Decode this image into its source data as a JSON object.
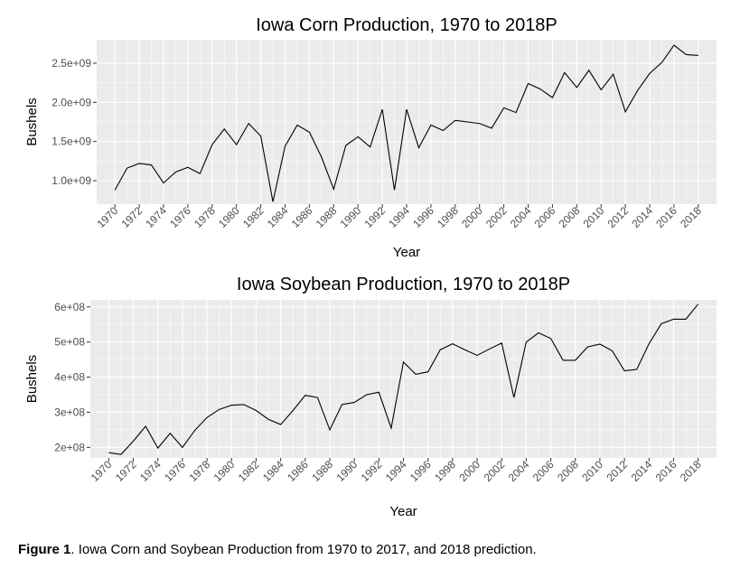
{
  "chart_data": [
    {
      "type": "line",
      "title": "Iowa Corn Production, 1970 to 2018P",
      "xlabel": "Year",
      "ylabel": "Bushels",
      "xlim": [
        1970,
        2018
      ],
      "ylim": [
        700000000,
        2800000000
      ],
      "x_ticks": [
        "1970",
        "1972",
        "1974",
        "1976",
        "1978",
        "1980",
        "1982",
        "1984",
        "1986",
        "1988",
        "1990",
        "1992",
        "1994",
        "1996",
        "1998",
        "2000",
        "2002",
        "2004",
        "2006",
        "2008",
        "2010",
        "2012",
        "2014",
        "2016",
        "2018"
      ],
      "y_ticks": [
        "1.0e+09",
        "1.5e+09",
        "2.0e+09",
        "2.5e+09"
      ],
      "y_tick_values": [
        1000000000,
        1500000000,
        2000000000,
        2500000000
      ],
      "grid": true,
      "x": [
        1970,
        1971,
        1972,
        1973,
        1974,
        1975,
        1976,
        1977,
        1978,
        1979,
        1980,
        1981,
        1982,
        1983,
        1984,
        1985,
        1986,
        1987,
        1988,
        1989,
        1990,
        1991,
        1992,
        1993,
        1994,
        1995,
        1996,
        1997,
        1998,
        1999,
        2000,
        2001,
        2002,
        2003,
        2004,
        2005,
        2006,
        2007,
        2008,
        2009,
        2010,
        2011,
        2012,
        2013,
        2014,
        2015,
        2016,
        2017,
        2018
      ],
      "values": [
        880000000,
        1160000000,
        1220000000,
        1200000000,
        970000000,
        1110000000,
        1170000000,
        1090000000,
        1460000000,
        1660000000,
        1460000000,
        1730000000,
        1570000000,
        730000000,
        1440000000,
        1710000000,
        1620000000,
        1300000000,
        890000000,
        1450000000,
        1560000000,
        1430000000,
        1910000000,
        880000000,
        1910000000,
        1420000000,
        1710000000,
        1640000000,
        1770000000,
        1750000000,
        1730000000,
        1670000000,
        1930000000,
        1870000000,
        2240000000,
        2170000000,
        2060000000,
        2380000000,
        2190000000,
        2410000000,
        2160000000,
        2360000000,
        1880000000,
        2150000000,
        2370000000,
        2510000000,
        2730000000,
        2610000000,
        2600000000
      ]
    },
    {
      "type": "line",
      "title": "Iowa Soybean Production, 1970 to 2018P",
      "xlabel": "Year",
      "ylabel": "Bushels",
      "xlim": [
        1970,
        2018
      ],
      "ylim": [
        170000000,
        620000000
      ],
      "x_ticks": [
        "1970",
        "1972",
        "1974",
        "1976",
        "1978",
        "1980",
        "1982",
        "1984",
        "1986",
        "1988",
        "1990",
        "1992",
        "1994",
        "1996",
        "1998",
        "2000",
        "2002",
        "2004",
        "2006",
        "2008",
        "2010",
        "2012",
        "2014",
        "2016",
        "2018"
      ],
      "y_ticks": [
        "2e+08",
        "3e+08",
        "4e+08",
        "5e+08",
        "6e+08"
      ],
      "y_tick_values": [
        200000000,
        300000000,
        400000000,
        500000000,
        600000000
      ],
      "grid": true,
      "x": [
        1970,
        1971,
        1972,
        1973,
        1974,
        1975,
        1976,
        1977,
        1978,
        1979,
        1980,
        1981,
        1982,
        1983,
        1984,
        1985,
        1986,
        1987,
        1988,
        1989,
        1990,
        1991,
        1992,
        1993,
        1994,
        1995,
        1996,
        1997,
        1998,
        1999,
        2000,
        2001,
        2002,
        2003,
        2004,
        2005,
        2006,
        2007,
        2008,
        2009,
        2010,
        2011,
        2012,
        2013,
        2014,
        2015,
        2016,
        2017,
        2018
      ],
      "values": [
        185000000,
        180000000,
        218000000,
        260000000,
        198000000,
        240000000,
        200000000,
        248000000,
        285000000,
        308000000,
        320000000,
        322000000,
        305000000,
        280000000,
        265000000,
        305000000,
        348000000,
        342000000,
        250000000,
        322000000,
        328000000,
        350000000,
        357000000,
        255000000,
        443000000,
        408000000,
        415000000,
        478000000,
        495000000,
        478000000,
        462000000,
        480000000,
        497000000,
        342000000,
        500000000,
        526000000,
        510000000,
        448000000,
        448000000,
        486000000,
        494000000,
        475000000,
        418000000,
        422000000,
        495000000,
        552000000,
        565000000,
        565000000,
        608000000
      ]
    }
  ],
  "caption": {
    "label": "Figure 1",
    "text": ". Iowa Corn and Soybean Production from 1970 to 2017, and 2018 prediction."
  },
  "colors": {
    "panel_bg": "#ebebeb",
    "grid_major": "#ffffff",
    "line": "#000000",
    "tick_text": "#4d4d4d"
  }
}
